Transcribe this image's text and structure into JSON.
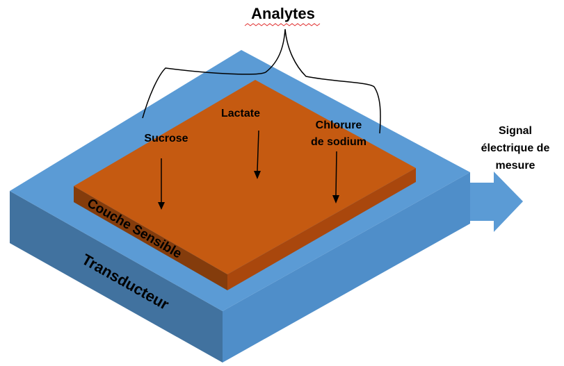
{
  "title": "Analytes",
  "analytes": [
    {
      "label": "Sucrose"
    },
    {
      "label": "Lactate"
    },
    {
      "label_line1": "Chlorure",
      "label_line2": "de sodium"
    }
  ],
  "layers": {
    "sensing": "Couche Sensible",
    "transducer": "Transducteur"
  },
  "signal": {
    "line1": "Signal",
    "line2": "électrique de",
    "line3": "mesure"
  },
  "colors": {
    "transducer_top": "#5b9bd5",
    "transducer_front": "#41729f",
    "transducer_right": "#4f8ec9",
    "sensing_top": "#c55a11",
    "sensing_front": "#843c0c",
    "arrow": "#5b9bd5",
    "text": "#000000"
  }
}
